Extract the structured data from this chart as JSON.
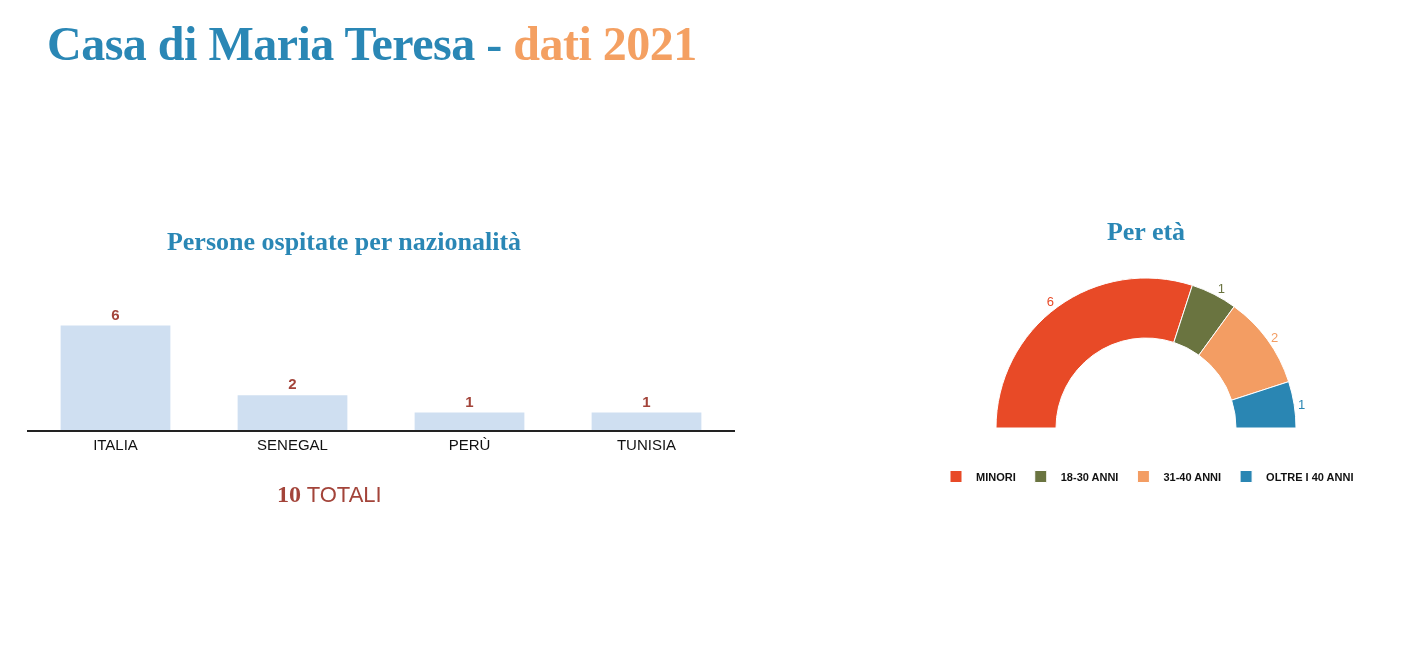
{
  "chart_data": [
    {
      "type": "bar",
      "title": "Casa di Maria Teresa - dati 2021",
      "subtitle": "Persone ospitate per nazionalità",
      "categories": [
        "ITALIA",
        "SENEGAL",
        "PERÙ",
        "TUNISIA"
      ],
      "values": [
        6,
        2,
        1,
        1
      ],
      "color": "#cfdff1",
      "data_labels": true,
      "tick_labels": "x",
      "grid": false,
      "annotations": [
        "10 TOTALI"
      ]
    },
    {
      "type": "donut",
      "title": "Per età",
      "categories": [
        "MINORI",
        "18-30 ANNI",
        "31-40 ANNI",
        "OLTRE I 40 ANNI"
      ],
      "values": [
        6,
        1,
        2,
        1
      ],
      "colors": [
        "#e84a27",
        "#6a7440",
        "#f39d63",
        "#2a86b3"
      ],
      "data_labels": true,
      "legend": "bottom"
    }
  ]
}
